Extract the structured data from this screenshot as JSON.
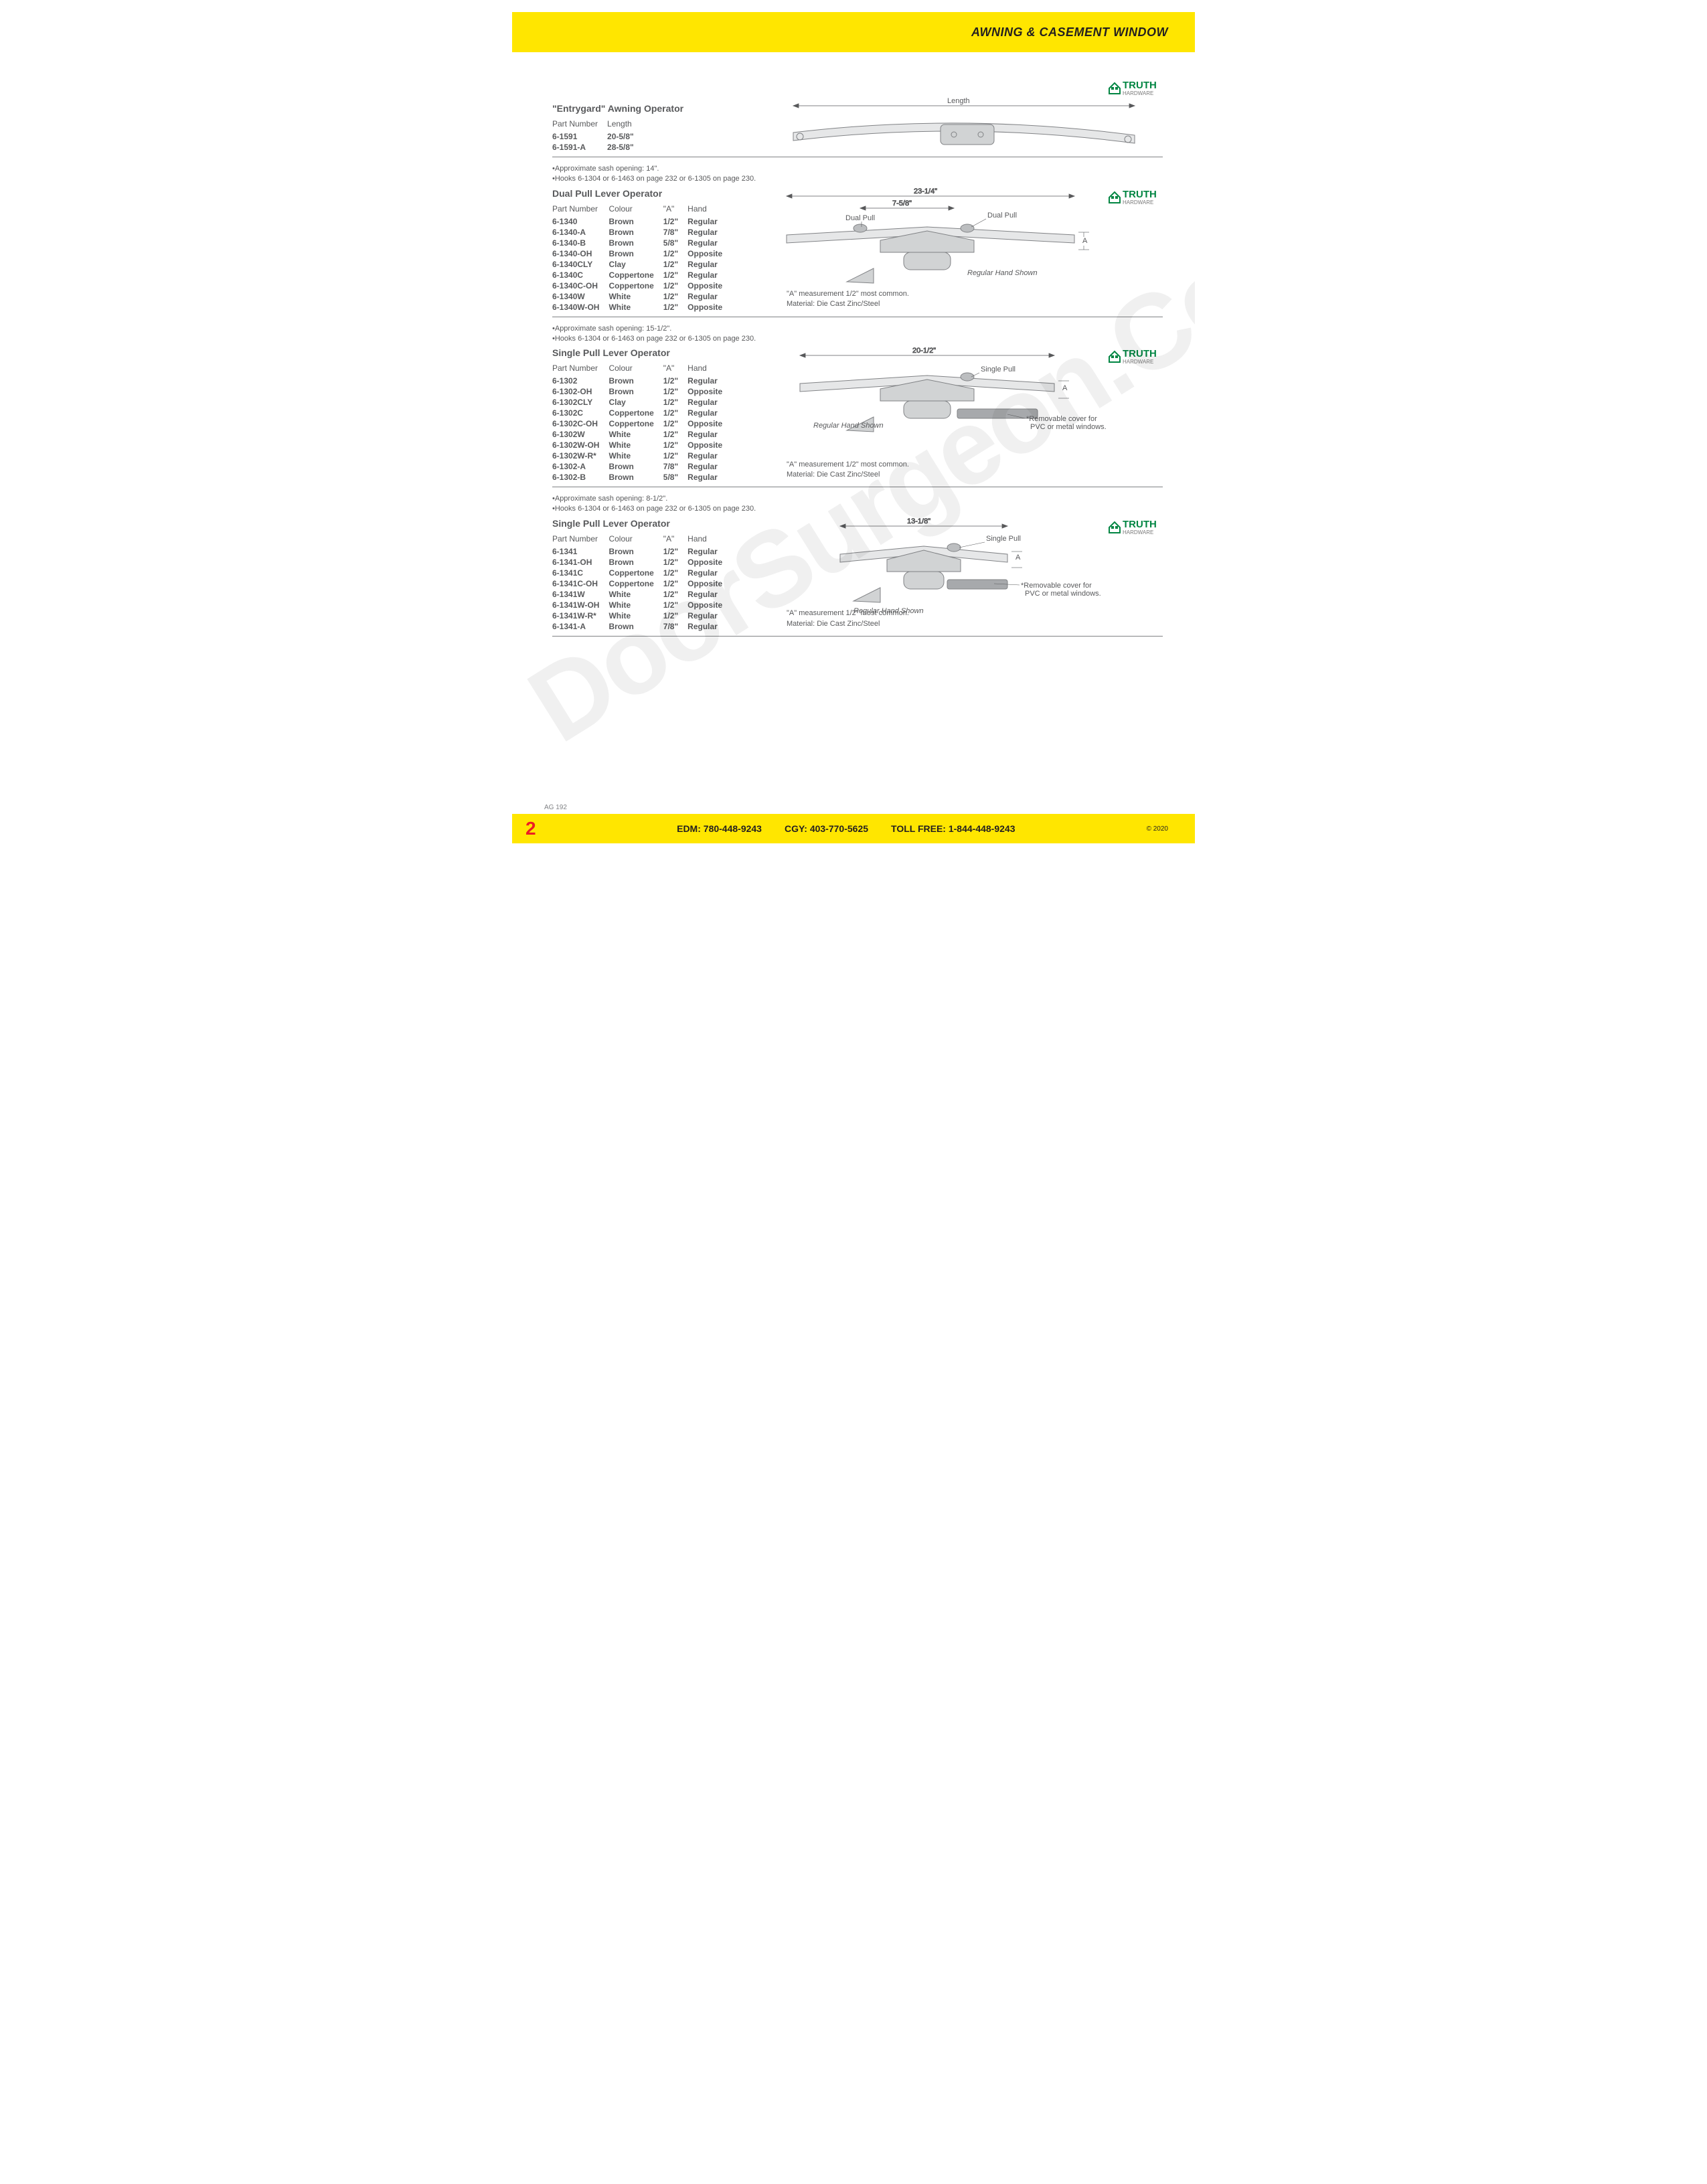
{
  "header": {
    "title": "AWNING & CASEMENT WINDOW"
  },
  "watermark": "DoorSurgeon.Com",
  "logo": {
    "top": "TRUTH",
    "bottom": "HARDWARE",
    "green": "#008542",
    "grey": "#7a7a7a"
  },
  "colors": {
    "yellow": "#ffe600",
    "red": "#ed1c24",
    "text": "#58595b",
    "rule": "#808285",
    "diagram_stroke": "#808285",
    "diagram_fill": "#d1d3d4"
  },
  "section1": {
    "title": "\"Entrygard\" Awning Operator",
    "cols": [
      "Part Number",
      "Length"
    ],
    "rows": [
      [
        "6-1591",
        "20-5/8\""
      ],
      [
        "6-1591-A",
        "28-5/8\""
      ]
    ],
    "diagram": {
      "length_label": "Length"
    }
  },
  "section2": {
    "notes": [
      "•Approximate sash opening: 14\".",
      "•Hooks 6-1304 or 6-1463 on page 232 or 6-1305 on page 230."
    ],
    "title": "Dual Pull Lever Operator",
    "cols": [
      "Part Number",
      "Colour",
      "\"A\"",
      "Hand"
    ],
    "rows": [
      [
        "6-1340",
        "Brown",
        "1/2\"",
        "Regular"
      ],
      [
        "6-1340-A",
        "Brown",
        "7/8\"",
        "Regular"
      ],
      [
        "6-1340-B",
        "Brown",
        "5/8\"",
        "Regular"
      ],
      [
        "6-1340-OH",
        "Brown",
        "1/2\"",
        "Opposite"
      ],
      [
        "6-1340CLY",
        "Clay",
        "1/2\"",
        "Regular"
      ],
      [
        "6-1340C",
        "Coppertone",
        "1/2\"",
        "Regular"
      ],
      [
        "6-1340C-OH",
        "Coppertone",
        "1/2\"",
        "Opposite"
      ],
      [
        "6-1340W",
        "White",
        "1/2\"",
        "Regular"
      ],
      [
        "6-1340W-OH",
        "White",
        "1/2\"",
        "Opposite"
      ]
    ],
    "diagram": {
      "width": "23-1/4\"",
      "half": "7-5/8\"",
      "dual_pull": "Dual Pull",
      "a": "A",
      "hand": "Regular Hand Shown"
    },
    "material": {
      "l1": "\"A\" measurement 1/2\" most common.",
      "l2l": "Material:",
      "l2v": "Die Cast Zinc/Steel"
    }
  },
  "section3": {
    "notes": [
      "•Approximate sash opening: 15-1/2\".",
      "•Hooks 6-1304 or 6-1463 on page 232 or 6-1305 on page 230."
    ],
    "title": "Single Pull Lever Operator",
    "cols": [
      "Part Number",
      "Colour",
      "\"A\"",
      "Hand"
    ],
    "rows": [
      [
        "6-1302",
        "Brown",
        "1/2\"",
        "Regular"
      ],
      [
        "6-1302-OH",
        "Brown",
        "1/2\"",
        "Opposite"
      ],
      [
        "6-1302CLY",
        "Clay",
        "1/2\"",
        "Regular"
      ],
      [
        "6-1302C",
        "Coppertone",
        "1/2\"",
        "Regular"
      ],
      [
        "6-1302C-OH",
        "Coppertone",
        "1/2\"",
        "Opposite"
      ],
      [
        "6-1302W",
        "White",
        "1/2\"",
        "Regular"
      ],
      [
        "6-1302W-OH",
        "White",
        "1/2\"",
        "Opposite"
      ],
      [
        "6-1302W-R*",
        "White",
        "1/2\"",
        "Regular"
      ],
      [
        "6-1302-A",
        "Brown",
        "7/8\"",
        "Regular"
      ],
      [
        "6-1302-B",
        "Brown",
        "5/8\"",
        "Regular"
      ]
    ],
    "diagram": {
      "width": "20-1/2\"",
      "single_pull": "Single Pull",
      "a": "A",
      "hand": "Regular Hand Shown",
      "cover": "*Removable cover for PVC or metal windows."
    },
    "material": {
      "l1": "\"A\" measurement 1/2\" most common.",
      "l2l": "Material:",
      "l2v": "Die Cast Zinc/Steel"
    }
  },
  "section4": {
    "notes": [
      "•Approximate sash opening: 8-1/2\".",
      "•Hooks 6-1304 or 6-1463 on page 232 or 6-1305 on page 230."
    ],
    "title": "Single Pull Lever Operator",
    "cols": [
      "Part Number",
      "Colour",
      "\"A\"",
      "Hand"
    ],
    "rows": [
      [
        "6-1341",
        "Brown",
        "1/2\"",
        "Regular"
      ],
      [
        "6-1341-OH",
        "Brown",
        "1/2\"",
        "Opposite"
      ],
      [
        "6-1341C",
        "Coppertone",
        "1/2\"",
        "Regular"
      ],
      [
        "6-1341C-OH",
        "Coppertone",
        "1/2\"",
        "Opposite"
      ],
      [
        "6-1341W",
        "White",
        "1/2\"",
        "Regular"
      ],
      [
        "6-1341W-OH",
        "White",
        "1/2\"",
        "Opposite"
      ],
      [
        "6-1341W-R*",
        "White",
        "1/2\"",
        "Regular"
      ],
      [
        "6-1341-A",
        "Brown",
        "7/8\"",
        "Regular"
      ]
    ],
    "diagram": {
      "width": "13-1/8\"",
      "single_pull": "Single Pull",
      "a": "A",
      "hand": "Regular Hand Shown",
      "cover": "*Removable cover for PVC or metal windows."
    },
    "material": {
      "l1": "\"A\" measurement 1/2\" most common.",
      "l2l": "Material:",
      "l2v": "Die Cast Zinc/Steel"
    }
  },
  "footer": {
    "code": "AG 192",
    "page": "2",
    "contacts": [
      {
        "label": "EDM:",
        "value": "780-448-9243"
      },
      {
        "label": "CGY:",
        "value": "403-770-5625"
      },
      {
        "label": "TOLL FREE:",
        "value": "1-844-448-9243"
      }
    ],
    "copyright": "© 2020"
  }
}
